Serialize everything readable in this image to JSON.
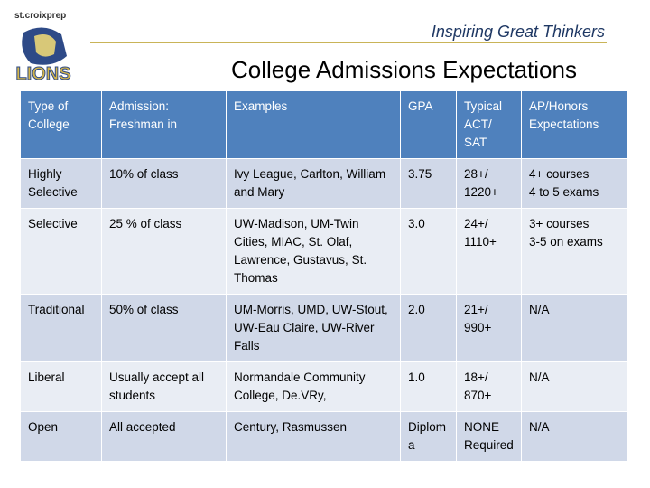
{
  "logo": {
    "school": "st.croixprep",
    "mascot": "LIONS"
  },
  "tagline": "Inspiring Great Thinkers",
  "title": "College Admissions Expectations",
  "table": {
    "header": [
      "Type of College",
      "Admission: Freshman in",
      "Examples",
      "GPA",
      "Typical ACT/ SAT",
      "AP/Honors Expectations"
    ],
    "rows": [
      [
        "Highly Selective",
        "10% of class",
        "Ivy League, Carlton, William and Mary",
        "3.75",
        "28+/\n1220+",
        "4+ courses\n4 to 5  exams"
      ],
      [
        "Selective",
        "25 % of class",
        "UW-Madison, UM-Twin Cities, MIAC, St. Olaf, Lawrence, Gustavus, St. Thomas",
        "3.0",
        "24+/\n1110+",
        "3+ courses\n3-5 on exams"
      ],
      [
        "Traditional",
        "50% of class",
        "UM-Morris, UMD, UW-Stout, UW-Eau Claire, UW-River Falls",
        "2.0",
        "21+/\n990+",
        "N/A"
      ],
      [
        "Liberal",
        "Usually accept all students",
        "Normandale Community College, De.VRy,",
        "1.0",
        "18+/\n870+",
        "N/A"
      ],
      [
        "Open",
        "All accepted",
        "Century, Rasmussen",
        "Diploma",
        "NONE Required",
        "N/A"
      ]
    ]
  }
}
